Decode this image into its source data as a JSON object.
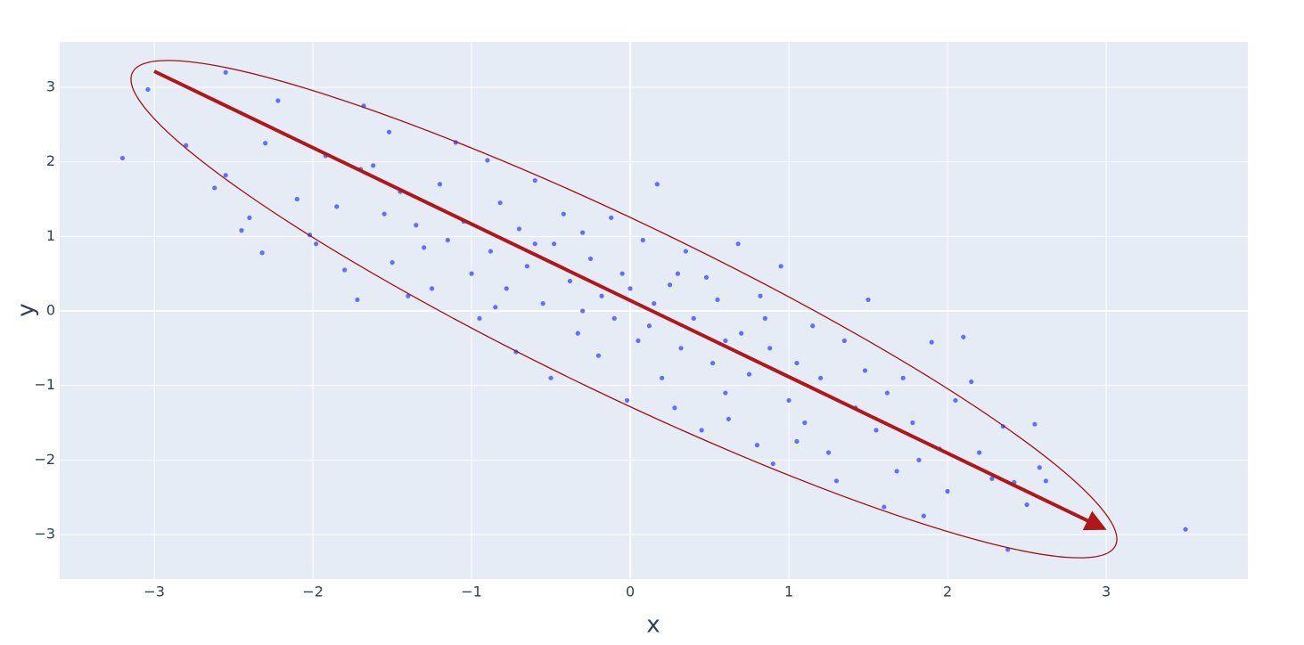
{
  "chart_data": {
    "type": "scatter",
    "x_title": "x",
    "y_title": "y",
    "xlim": [
      -3.596,
      3.893
    ],
    "ylim": [
      -3.597,
      3.609
    ],
    "xticks": [
      {
        "value": -3,
        "label": "−3"
      },
      {
        "value": -2,
        "label": "−2"
      },
      {
        "value": -1,
        "label": "−1"
      },
      0,
      1,
      2,
      3
    ],
    "yticks": [
      {
        "value": -3,
        "label": "−3"
      },
      {
        "value": -2,
        "label": "−2"
      },
      {
        "value": -1,
        "label": "−1"
      },
      0,
      1,
      2,
      3
    ],
    "grid": true,
    "color": "#636efa",
    "x": [
      -3.2,
      -3.04,
      -2.8,
      -2.55,
      -2.22,
      -2.62,
      -2.55,
      -2.4,
      -2.45,
      -2.32,
      -2.3,
      -2.1,
      -2.02,
      -1.98,
      -1.92,
      -1.85,
      -1.8,
      -1.72,
      -1.68,
      -1.62,
      -1.55,
      -1.52,
      -1.5,
      -1.45,
      -1.4,
      -1.35,
      -1.3,
      -1.25,
      -1.2,
      -1.15,
      -1.1,
      -1.05,
      -1.0,
      -0.95,
      -0.9,
      -0.88,
      -0.82,
      -0.78,
      -0.72,
      -0.7,
      -0.65,
      -0.6,
      -0.55,
      -0.5,
      -0.48,
      -0.42,
      -0.38,
      -0.33,
      -0.3,
      -0.25,
      -0.2,
      -0.18,
      -0.12,
      -0.1,
      -0.05,
      -0.02,
      0.0,
      0.05,
      0.08,
      0.12,
      0.15,
      0.17,
      0.2,
      0.25,
      0.28,
      0.32,
      0.35,
      0.4,
      0.45,
      0.48,
      0.52,
      0.55,
      0.6,
      0.62,
      0.68,
      0.7,
      0.75,
      0.8,
      0.82,
      0.88,
      0.9,
      0.95,
      1.0,
      1.05,
      1.1,
      1.15,
      1.2,
      1.25,
      1.3,
      1.35,
      1.42,
      1.48,
      1.5,
      1.55,
      1.6,
      1.62,
      1.68,
      1.72,
      1.78,
      1.82,
      1.85,
      1.9,
      1.95,
      2.0,
      2.05,
      2.1,
      2.15,
      2.2,
      2.28,
      2.35,
      2.38,
      2.42,
      2.5,
      2.55,
      2.58,
      2.62,
      3.5,
      -0.3,
      0.3,
      -0.6,
      0.6,
      -1.7,
      1.05,
      -0.85,
      0.85
    ],
    "y": [
      2.05,
      2.97,
      2.22,
      3.2,
      2.82,
      1.65,
      1.82,
      1.25,
      1.08,
      0.78,
      2.25,
      1.5,
      1.02,
      0.9,
      2.08,
      1.4,
      0.55,
      0.15,
      2.75,
      1.95,
      1.3,
      2.4,
      0.65,
      1.6,
      0.2,
      1.15,
      0.85,
      0.3,
      1.7,
      0.95,
      2.26,
      1.2,
      0.5,
      -0.1,
      2.02,
      0.8,
      1.45,
      0.3,
      -0.55,
      1.1,
      0.6,
      1.75,
      0.1,
      -0.9,
      0.9,
      1.3,
      0.4,
      -0.3,
      1.05,
      0.7,
      -0.6,
      0.2,
      1.25,
      -0.1,
      0.5,
      -1.2,
      0.3,
      -0.4,
      0.95,
      -0.2,
      0.1,
      1.7,
      -0.9,
      0.35,
      -1.3,
      -0.5,
      0.8,
      -0.1,
      -1.6,
      0.45,
      -0.7,
      0.15,
      -1.1,
      -1.45,
      0.9,
      -0.3,
      -0.85,
      -1.8,
      0.2,
      -0.5,
      -2.05,
      0.6,
      -1.2,
      -0.7,
      -1.5,
      -0.2,
      -0.9,
      -1.9,
      -2.28,
      -0.4,
      -1.3,
      -0.8,
      0.15,
      -1.6,
      -2.63,
      -1.1,
      -2.15,
      -0.9,
      -1.5,
      -2.0,
      -2.75,
      -0.42,
      -1.85,
      -2.42,
      -1.2,
      -0.35,
      -0.95,
      -1.9,
      -2.25,
      -1.55,
      -3.2,
      -2.3,
      -2.6,
      -1.52,
      -2.1,
      -2.28,
      -2.93,
      0.0,
      0.5,
      0.9,
      -0.4,
      1.9,
      -1.75,
      0.05,
      -0.1
    ]
  }
}
